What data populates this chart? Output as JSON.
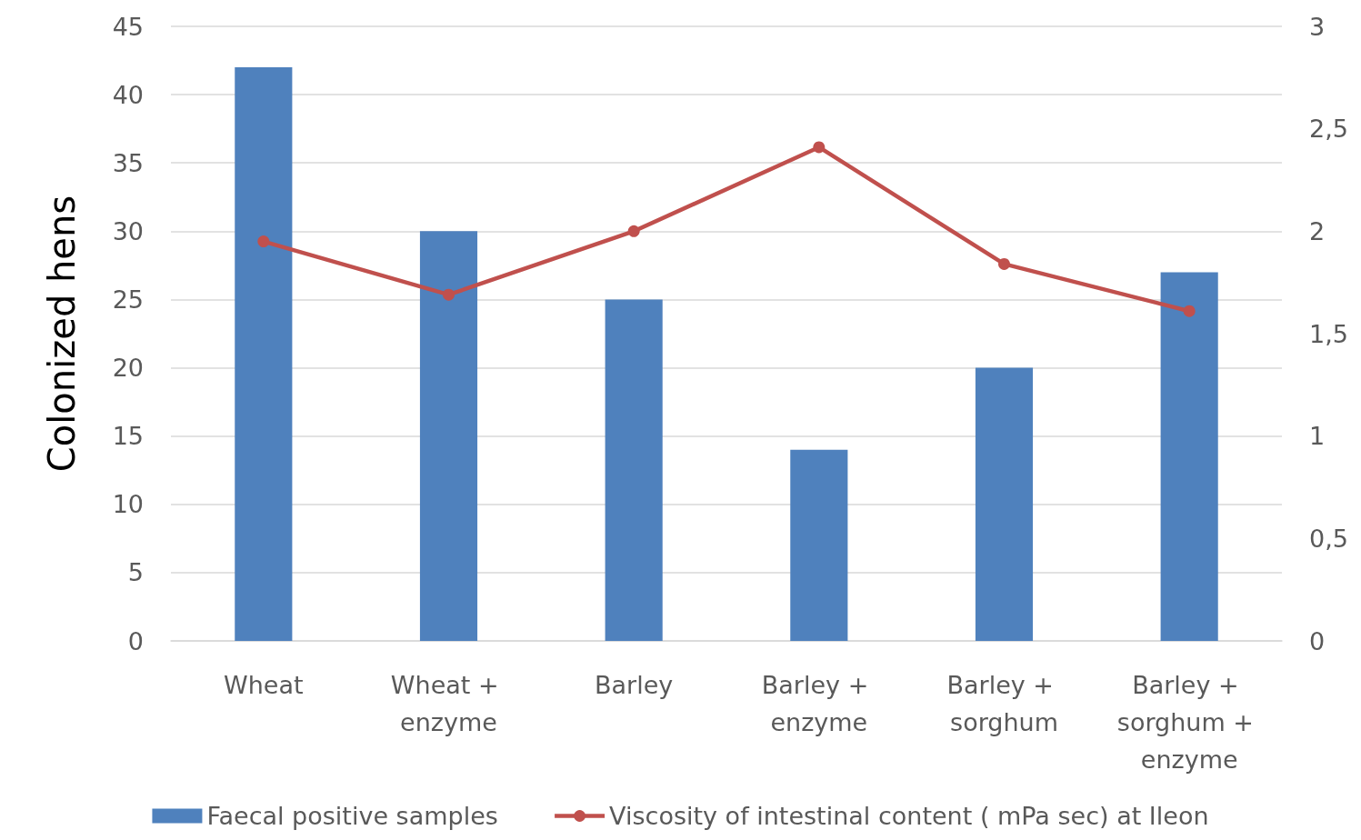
{
  "chart_data": {
    "type": "bar",
    "ylabel": "Colonized hens",
    "categories": [
      "Wheat",
      "Wheat + enzyme",
      "Barley",
      "Barley + enzyme",
      "Barley + sorghum",
      "Barley + sorghum + enzyme"
    ],
    "series": [
      {
        "name": "Faecal positive samples",
        "color": "#4f81bd",
        "values": [
          42,
          30,
          25,
          14,
          20,
          27
        ]
      },
      {
        "name": "Viscosity of intestinal content ( mPa sec) at Ileon",
        "type": "line",
        "axis": "y2",
        "color": "#c0504d",
        "marker": "circle",
        "values": [
          1.95,
          1.69,
          2.0,
          2.41,
          1.84,
          1.61
        ]
      }
    ],
    "ylim": [
      0,
      45
    ],
    "yticks": [
      0,
      5,
      10,
      15,
      20,
      25,
      30,
      35,
      40,
      45
    ],
    "y2lim": [
      0,
      3
    ],
    "y2ticks": [
      0,
      {
        "value": 0.5,
        "label": "0,5"
      },
      1,
      {
        "value": 1.5,
        "label": "1,5"
      },
      2,
      {
        "value": 2.5,
        "label": "2,5"
      },
      3
    ],
    "grid": "y",
    "legend": "bottom"
  }
}
